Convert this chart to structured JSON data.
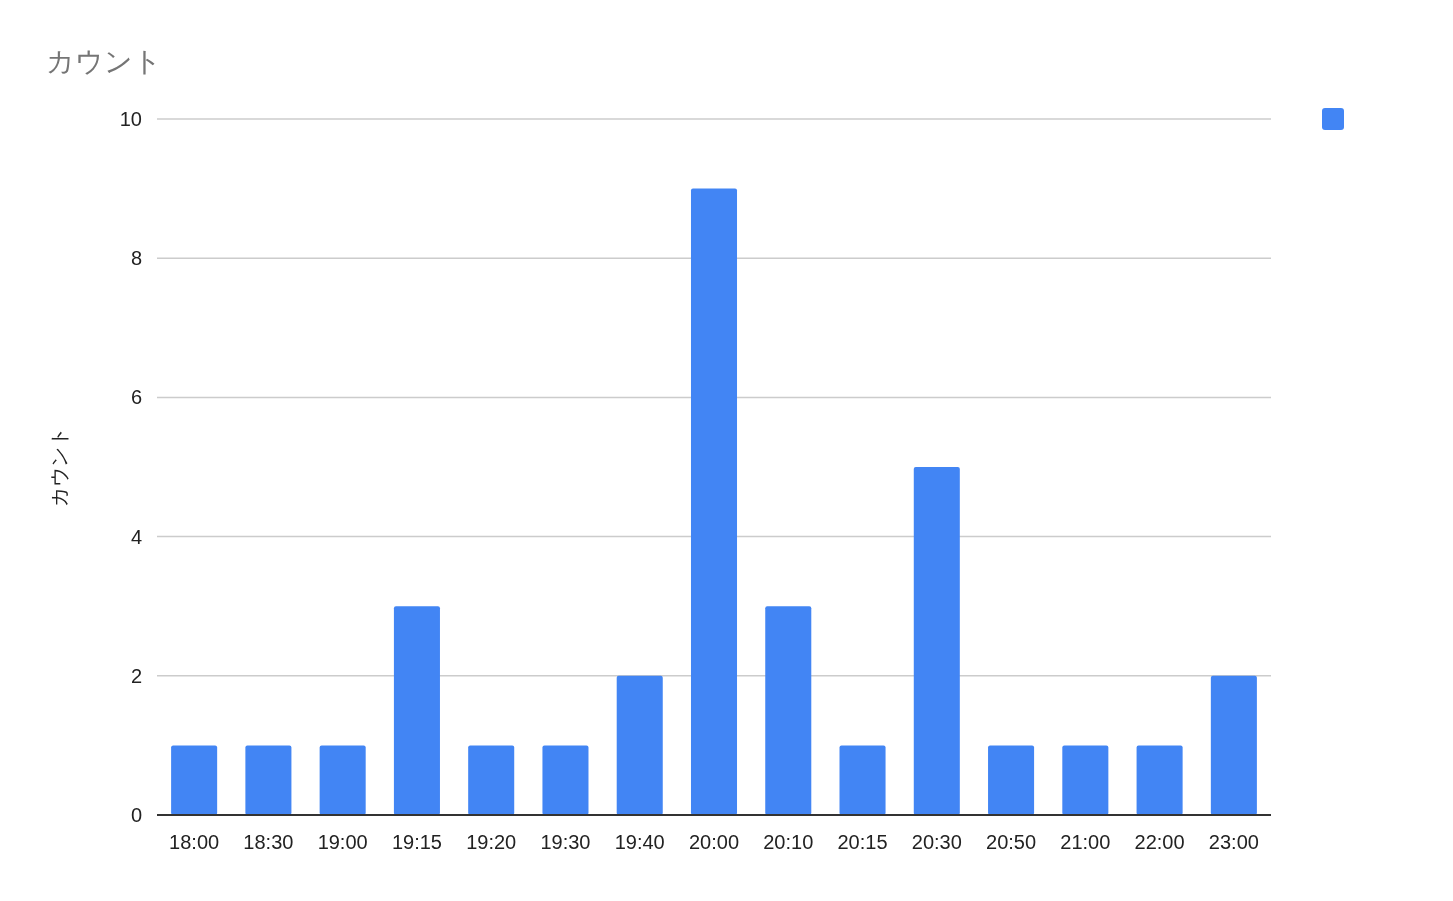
{
  "chart_data": {
    "type": "bar",
    "title": "カウント",
    "ylabel": "カウント",
    "categories": [
      "18:00",
      "18:30",
      "19:00",
      "19:15",
      "19:20",
      "19:30",
      "19:40",
      "20:00",
      "20:10",
      "20:15",
      "20:30",
      "20:50",
      "21:00",
      "22:00",
      "23:00"
    ],
    "series": [
      {
        "color": "#4285f4",
        "values": [
          1,
          1,
          1,
          3,
          1,
          1,
          2,
          9,
          3,
          1,
          5,
          1,
          1,
          1,
          2
        ]
      }
    ],
    "ylim": [
      0,
      10
    ],
    "yticks": [
      0,
      2,
      4,
      6,
      8,
      10
    ],
    "grid": "y"
  }
}
